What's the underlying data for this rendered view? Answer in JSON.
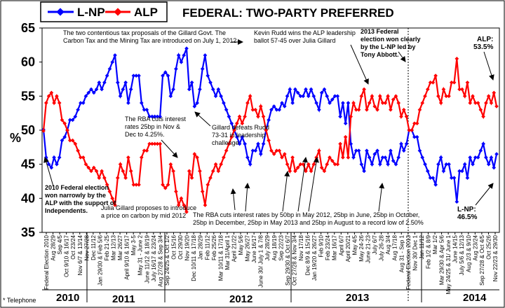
{
  "chart_data": {
    "type": "line",
    "title": "FEDERAL: TWO-PARTY PREFERRED",
    "ylabel": "%",
    "ylim": [
      35,
      65
    ],
    "yticks": [
      35,
      40,
      45,
      50,
      55,
      60,
      65
    ],
    "legend": [
      "L-NP",
      "ALP"
    ],
    "colors": {
      "lnp": "#0000ff",
      "alp": "#ff0000"
    },
    "footnote": "* Telephone",
    "years": [
      "2010",
      "2011",
      "2012",
      "2013",
      "2014"
    ],
    "tick_labels": [
      "Federal Election 2010",
      "Aug 28/29",
      "Sep 4/5",
      "Oct 9/10 & 16/17",
      "Oct 23/24",
      "Nov 6/7 & 13/14",
      "Nov 27/28",
      "Dec 11/12",
      "Jan 29/30 & Feb 5/6",
      "Feb 21-25",
      "Mar 12/13",
      "Mar 26/27",
      "April 9/10 & 16/17",
      "May 3-5",
      "May 31 - June 2",
      "June 11/12 & 18/19",
      "July 16/17 & 23/24",
      "Aug 27/28 & Sep 3/4",
      "Sep 24/25 & Oct 1/2",
      "Oct 15/16",
      "Oct 29/30",
      "Nov 19/20",
      "Dec 10/11 & 17/18",
      "Jan 28/29",
      "Feb 11/12",
      "Feb 25/26",
      "Mar 10/11 & 17/18",
      "Mar 31/April 1",
      "April 21/22",
      "May 5/6",
      "May 26/27",
      "June 16/17",
      "June 30/ July 1 & 7/8",
      "July 28/29",
      "Aug 18/19",
      "Sep 22/23",
      "Sep 29/30 & Oct 6/7",
      "Oct 27/28 & Nov 3/4",
      "Nov 17/18",
      "Dec 8/9 & 15/16",
      "Jan 19/20 & 26/27",
      "Feb 9/10",
      "Feb 23/24",
      "Mar 16/17",
      "April 6/7",
      "April 20/21",
      "May 4/5",
      "May 24-26",
      "June 21-23",
      "July 6/7",
      "July 26-28",
      "Aug 3/4",
      "Aug 17/18",
      "Aug 31 - Sep 1",
      "Federal Election 2013",
      "Nov 30/ Dec 1",
      "Jan 11/12",
      "Feb 1/2 & 8/9",
      "Mar 1/2",
      "Mar 29/30 & Apr 5/6",
      "May 24/25 & 31/ June 1",
      "June 14/15",
      "July 5/6 & 12/13",
      "Aug 2/3 & 9/10",
      "Aug 23/24",
      "Sep 27/28 & Oct 4/5",
      "Oct 25/26",
      "Nov 22/23 & 29/30"
    ],
    "lnp": [
      50.1,
      46,
      45,
      44.5,
      46,
      45,
      46,
      48.5,
      49,
      50,
      51.5,
      51.5,
      52,
      53,
      54,
      54,
      55,
      55.5,
      56,
      55.5,
      56,
      57,
      56,
      57,
      58,
      59,
      60,
      61,
      57,
      55,
      56,
      57,
      54,
      56,
      58,
      58,
      58,
      54,
      53,
      53,
      52,
      52,
      52,
      52,
      52,
      58,
      58.5,
      58,
      55,
      56,
      59,
      61,
      60,
      61,
      62,
      56,
      57,
      53.5,
      54,
      56,
      59,
      61,
      58,
      57,
      56,
      55,
      56,
      55,
      54,
      53,
      52,
      51,
      50,
      49,
      48,
      49,
      48,
      46,
      45,
      47,
      47,
      48,
      46.5,
      48,
      50,
      51.5,
      53,
      53.5,
      53,
      53,
      54,
      53.5,
      55,
      56,
      54,
      56,
      55.5,
      55,
      55,
      56,
      55,
      56,
      55,
      54,
      53,
      55.5,
      56,
      55,
      54,
      54.5,
      55,
      55,
      52,
      54,
      51,
      54,
      48,
      46,
      47,
      47,
      45,
      44,
      47,
      46,
      45,
      46.5,
      47,
      45,
      46,
      46,
      45,
      47,
      45.5,
      45,
      46,
      48,
      47,
      48,
      50,
      50,
      49,
      49,
      47,
      46,
      45,
      44,
      43,
      43,
      42,
      45,
      46,
      44,
      45,
      45,
      43,
      43,
      39.5,
      44,
      44,
      45,
      43,
      46,
      45,
      46,
      46,
      47,
      48,
      46,
      45,
      46,
      44.5,
      46.5
    ],
    "annotations": {
      "tax": "The two contentious tax proposals of the Gillard Govt. The Carbon Tax and the Mining Tax are introduced on July 1, 2012",
      "rudd": "Kevin Rudd wins the ALP leadership ballot 57-45 over Julia Gillard",
      "election2013": "2013 Federal election won clearly by the L-NP led by Tony Abbott.",
      "alp_final": "ALP: 53.5%",
      "lnp_final": "L-NP: 46.5%",
      "rba1": "The RBA cuts interest rates 25bp in Nov & Dec to 4.25%.",
      "gillard": "Gillard defeats Rudd 73-31 in leadership challenge",
      "election2010": "2010 Federal election won narrowly by the ALP with the support of Independents.",
      "carbon": "Julia Gillard proposes to introduce a price on carbon by mid 2012",
      "rba2": "The RBA cuts interest rates by 50bp in May 2012, 25bp in June, 25bp in October, 25bp in December, 25bp in May 2013 and 25bp in August to a record low of 2.50%"
    }
  }
}
